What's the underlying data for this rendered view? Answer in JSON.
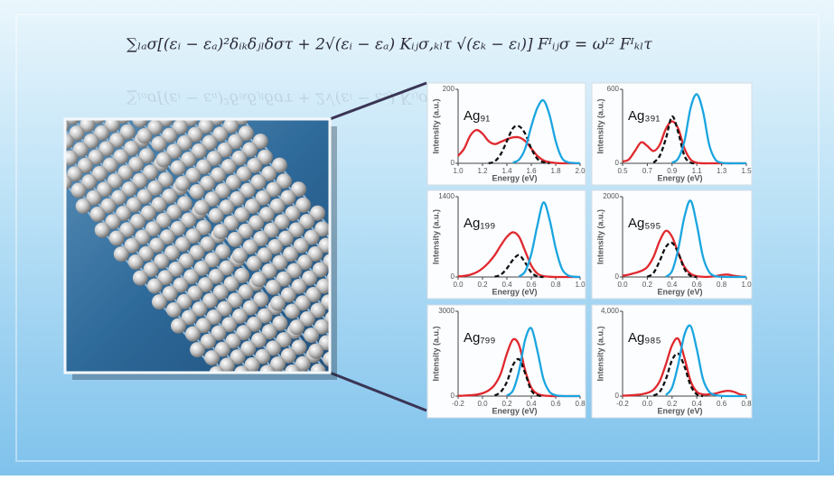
{
  "formula": "∑ₗₐσ[(εᵢ − εₐ)²δᵢₖδⱼₗδστ + 2√(εᵢ − εₐ) Kᵢⱼσ,ₖₗτ √(εₖ − εₗ)] Fᴵᵢⱼσ = ωᴵ² Fᴵₖₗτ",
  "chart_data": [
    {
      "type": "line",
      "title": "Ag₉₁",
      "xlabel": "Energy (eV)",
      "ylabel": "Intensity (a.u.)",
      "x": [
        1,
        1.05,
        1.1,
        1.15,
        1.2,
        1.25,
        1.3,
        1.35,
        1.4,
        1.45,
        1.5,
        1.55,
        1.6,
        1.65,
        1.7,
        1.75,
        1.8,
        1.85,
        1.9,
        1.95,
        2
      ],
      "xlim": [
        1,
        2
      ],
      "xticks": [
        {
          "value": 1,
          "label": "1.0"
        },
        1.2,
        1.4,
        1.6,
        1.8,
        {
          "value": 2,
          "label": "2.0"
        }
      ],
      "ylim": [
        0,
        200
      ],
      "yticks": [
        0,
        200
      ],
      "series": [
        {
          "color": "#e0282e",
          "line_style": "solid",
          "values": [
            20,
            40,
            75,
            90,
            80,
            60,
            52,
            58,
            65,
            70,
            70,
            60,
            40,
            20,
            8,
            3,
            1,
            0,
            0,
            0,
            0
          ]
        },
        {
          "color": "#111111",
          "line_style": "dashed",
          "values": [
            null,
            null,
            null,
            null,
            null,
            0,
            5,
            25,
            60,
            95,
            100,
            80,
            40,
            12,
            3,
            0,
            null,
            null,
            null,
            null,
            null
          ]
        },
        {
          "color": "#1aa5e0",
          "line_style": "solid",
          "values": [
            null,
            null,
            null,
            null,
            null,
            null,
            null,
            null,
            null,
            2,
            10,
            40,
            100,
            150,
            170,
            130,
            60,
            15,
            3,
            1,
            0
          ]
        }
      ]
    },
    {
      "type": "line",
      "title": "Ag₃₉₁",
      "xlabel": "Energy (eV)",
      "ylabel": "Intensity (a.u.)",
      "x": [
        0.5,
        0.55,
        0.6,
        0.65,
        0.7,
        0.75,
        0.8,
        0.85,
        0.9,
        0.95,
        1,
        1.05,
        1.1,
        1.15,
        1.2,
        1.25,
        1.3,
        1.35,
        1.4,
        1.45,
        1.5
      ],
      "xlim": [
        0.5,
        1.5
      ],
      "xticks": [
        0.5,
        0.7,
        0.9,
        1.1,
        1.3,
        1.5
      ],
      "ylim": [
        0,
        600
      ],
      "yticks": [
        0,
        600
      ],
      "series": [
        {
          "color": "#e0282e",
          "line_style": "solid",
          "values": [
            15,
            30,
            100,
            170,
            140,
            100,
            150,
            280,
            340,
            280,
            120,
            30,
            5,
            0,
            0,
            0,
            0,
            0,
            0,
            0,
            0
          ]
        },
        {
          "color": "#111111",
          "line_style": "dashed",
          "values": [
            null,
            null,
            null,
            null,
            null,
            5,
            60,
            200,
            380,
            250,
            60,
            5,
            0,
            null,
            null,
            null,
            null,
            null,
            null,
            null,
            null
          ]
        },
        {
          "color": "#1aa5e0",
          "line_style": "solid",
          "values": [
            null,
            null,
            null,
            null,
            null,
            null,
            null,
            null,
            5,
            40,
            180,
            450,
            560,
            420,
            150,
            30,
            5,
            0,
            0,
            0,
            0
          ]
        }
      ]
    },
    {
      "type": "line",
      "title": "Ag₁₉₉",
      "xlabel": "Energy (eV)",
      "ylabel": "Intensity (a.u.)",
      "x": [
        0,
        0.05,
        0.1,
        0.15,
        0.2,
        0.25,
        0.3,
        0.35,
        0.4,
        0.45,
        0.5,
        0.55,
        0.6,
        0.65,
        0.7,
        0.75,
        0.8,
        0.85,
        0.9,
        0.95,
        1
      ],
      "xlim": [
        0,
        1
      ],
      "xticks": [
        {
          "value": 0,
          "label": "0.0"
        },
        0.2,
        0.4,
        0.6,
        0.8,
        {
          "value": 1,
          "label": "1.0"
        }
      ],
      "ylim": [
        0,
        1400
      ],
      "yticks": [
        0,
        1400
      ],
      "series": [
        {
          "color": "#e0282e",
          "line_style": "solid",
          "values": [
            10,
            20,
            40,
            80,
            150,
            250,
            380,
            550,
            700,
            780,
            700,
            450,
            200,
            60,
            15,
            5,
            0,
            0,
            0,
            0,
            0
          ]
        },
        {
          "color": "#111111",
          "line_style": "dashed",
          "values": [
            null,
            null,
            null,
            null,
            null,
            null,
            5,
            40,
            150,
            300,
            380,
            250,
            80,
            10,
            0,
            null,
            null,
            null,
            null,
            null,
            null
          ]
        },
        {
          "color": "#1aa5e0",
          "line_style": "solid",
          "values": [
            null,
            null,
            null,
            null,
            null,
            null,
            null,
            null,
            null,
            null,
            10,
            100,
            400,
            900,
            1300,
            1000,
            500,
            150,
            30,
            5,
            0
          ]
        }
      ]
    },
    {
      "type": "line",
      "title": "Ag₅₉₅",
      "xlabel": "Energy (eV)",
      "ylabel": "Intensity (a.u.)",
      "x": [
        0,
        0.05,
        0.1,
        0.15,
        0.2,
        0.25,
        0.3,
        0.35,
        0.4,
        0.45,
        0.5,
        0.55,
        0.6,
        0.65,
        0.7,
        0.75,
        0.8,
        0.85,
        0.9,
        0.95,
        1
      ],
      "xlim": [
        0,
        1
      ],
      "xticks": [
        {
          "value": 0,
          "label": "0.0"
        },
        0.2,
        0.4,
        0.6,
        0.8,
        {
          "value": 1,
          "label": "1.0"
        }
      ],
      "ylim": [
        0,
        2000
      ],
      "yticks": [
        0,
        2000
      ],
      "series": [
        {
          "color": "#e0282e",
          "line_style": "solid",
          "values": [
            30,
            60,
            100,
            150,
            250,
            500,
            900,
            1150,
            1000,
            600,
            250,
            80,
            20,
            5,
            5,
            20,
            50,
            60,
            30,
            10,
            0
          ]
        },
        {
          "color": "#111111",
          "line_style": "dashed",
          "values": [
            null,
            null,
            null,
            null,
            5,
            100,
            400,
            750,
            850,
            600,
            200,
            30,
            0,
            null,
            null,
            null,
            null,
            null,
            null,
            null,
            null
          ]
        },
        {
          "color": "#1aa5e0",
          "line_style": "solid",
          "values": [
            null,
            null,
            null,
            null,
            null,
            null,
            null,
            5,
            150,
            700,
            1500,
            1900,
            1300,
            500,
            120,
            20,
            5,
            0,
            0,
            0,
            0
          ]
        }
      ]
    },
    {
      "type": "line",
      "title": "Ag₇₉₉",
      "xlabel": "Energy (eV)",
      "ylabel": "Intensity (a.u.)",
      "x": [
        -0.2,
        -0.15,
        -0.1,
        -0.05,
        0,
        0.05,
        0.1,
        0.15,
        0.2,
        0.25,
        0.3,
        0.35,
        0.4,
        0.45,
        0.5,
        0.55,
        0.6,
        0.65,
        0.7,
        0.75,
        0.8
      ],
      "xlim": [
        -0.2,
        0.8
      ],
      "xticks": [
        -0.2,
        {
          "value": 0,
          "label": "0.0"
        },
        0.2,
        0.4,
        0.6,
        0.8
      ],
      "ylim": [
        0,
        3000
      ],
      "yticks": [
        0,
        3000
      ],
      "series": [
        {
          "color": "#e0282e",
          "line_style": "solid",
          "values": [
            10,
            15,
            30,
            50,
            100,
            200,
            400,
            800,
            1500,
            2000,
            1800,
            900,
            300,
            80,
            20,
            5,
            0,
            0,
            0,
            0,
            0
          ]
        },
        {
          "color": "#111111",
          "line_style": "dashed",
          "values": [
            null,
            null,
            null,
            null,
            null,
            null,
            20,
            150,
            500,
            1100,
            1300,
            800,
            200,
            30,
            0,
            null,
            null,
            null,
            null,
            null,
            null
          ]
        },
        {
          "color": "#1aa5e0",
          "line_style": "solid",
          "values": [
            null,
            null,
            null,
            null,
            null,
            null,
            null,
            null,
            20,
            200,
            900,
            2000,
            2400,
            1600,
            600,
            150,
            30,
            5,
            0,
            0,
            0
          ]
        }
      ]
    },
    {
      "type": "line",
      "title": "Ag₉₈₅",
      "xlabel": "Energy (eV)",
      "ylabel": "Intensity (a.u.)",
      "x": [
        -0.2,
        -0.15,
        -0.1,
        -0.05,
        0,
        0.05,
        0.1,
        0.15,
        0.2,
        0.25,
        0.3,
        0.35,
        0.4,
        0.45,
        0.5,
        0.55,
        0.6,
        0.65,
        0.7,
        0.75,
        0.8
      ],
      "xlim": [
        -0.2,
        0.8
      ],
      "xticks": [
        -0.2,
        {
          "value": 0,
          "label": "0.0"
        },
        0.2,
        0.4,
        0.6,
        0.8
      ],
      "ylim": [
        0,
        4000
      ],
      "yticks": [
        0,
        {
          "value": 4000,
          "label": "4,000"
        }
      ],
      "series": [
        {
          "color": "#e0282e",
          "line_style": "solid",
          "values": [
            20,
            30,
            50,
            80,
            150,
            300,
            700,
            1500,
            2400,
            2700,
            1800,
            700,
            200,
            80,
            80,
            120,
            200,
            250,
            200,
            80,
            20
          ]
        },
        {
          "color": "#111111",
          "line_style": "dashed",
          "values": [
            null,
            null,
            null,
            null,
            null,
            20,
            200,
            800,
            1700,
            2000,
            1400,
            500,
            80,
            0,
            null,
            null,
            null,
            null,
            null,
            null,
            null
          ]
        },
        {
          "color": "#1aa5e0",
          "line_style": "solid",
          "values": [
            null,
            null,
            null,
            null,
            null,
            null,
            null,
            50,
            400,
            1500,
            2900,
            3300,
            2200,
            800,
            200,
            50,
            10,
            0,
            0,
            0,
            0
          ]
        }
      ]
    }
  ]
}
